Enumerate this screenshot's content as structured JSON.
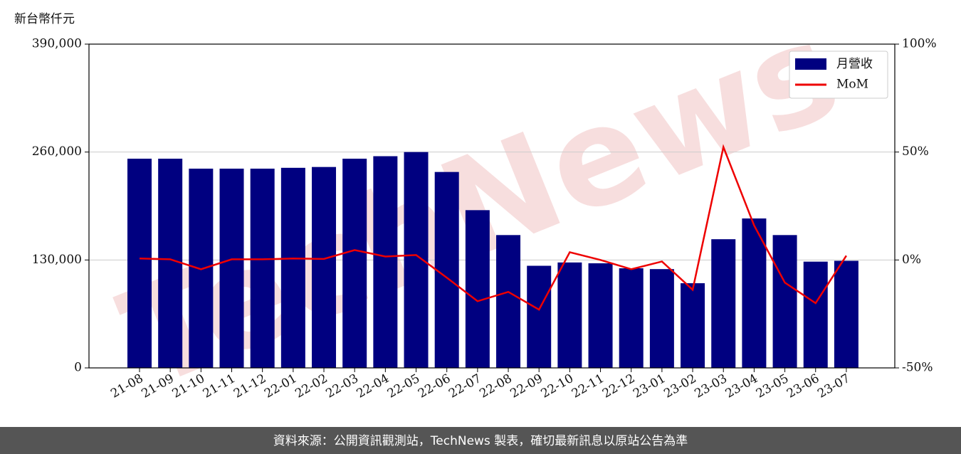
{
  "chart_data": {
    "type": "bar_line",
    "y_label": "新台幣仟元",
    "watermark": "TechNews",
    "footer": "資料來源：公開資訊觀測站，TechNews 製表，確切最新訊息以原站公告為準",
    "categories": [
      "21-08",
      "21-09",
      "21-10",
      "21-11",
      "21-12",
      "22-01",
      "22-02",
      "22-03",
      "22-04",
      "22-05",
      "22-06",
      "22-07",
      "22-08",
      "22-09",
      "22-10",
      "22-11",
      "22-12",
      "23-01",
      "23-02",
      "23-03",
      "23-04",
      "23-05",
      "23-06",
      "23-07"
    ],
    "series": [
      {
        "name": "月營收",
        "type": "bar",
        "color": "#000080",
        "axis": "y",
        "values": [
          252000,
          252000,
          240000,
          240000,
          240000,
          241000,
          242000,
          252000,
          255000,
          260000,
          236000,
          190000,
          160000,
          123000,
          127000,
          126000,
          120000,
          119000,
          102000,
          155000,
          180000,
          160000,
          128000,
          129000
        ]
      },
      {
        "name": "MoM",
        "type": "line",
        "color": "#ee0000",
        "axis": "y2",
        "values": [
          0.7,
          0.3,
          -4.3,
          0.3,
          0.3,
          0.7,
          0.5,
          4.6,
          1.6,
          2.3,
          -8.2,
          -19.1,
          -14.8,
          -23,
          3.6,
          0,
          -4.3,
          -0.7,
          -13.8,
          52.3,
          16,
          -10.5,
          -20,
          2
        ]
      }
    ],
    "ylim": [
      0,
      390000
    ],
    "yticks": [
      0,
      {
        "value": 130000,
        "label": "130,000"
      },
      {
        "value": 260000,
        "label": "260,000"
      },
      {
        "value": 390000,
        "label": "390,000"
      }
    ],
    "y2lim": [
      -50,
      100
    ],
    "y2ticks": [
      {
        "value": -50,
        "label": "-50%"
      },
      {
        "value": 0,
        "label": "0%"
      },
      {
        "value": 50,
        "label": "50%"
      },
      {
        "value": 100,
        "label": "100%"
      }
    ],
    "grid": true,
    "legend": "upper right"
  }
}
